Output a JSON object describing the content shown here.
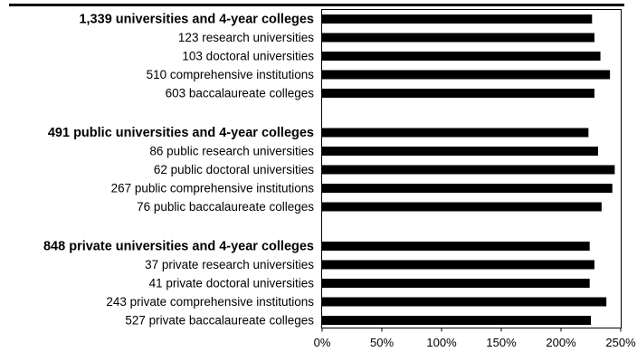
{
  "chart_data": {
    "type": "bar",
    "orientation": "horizontal",
    "title": "",
    "xlabel": "",
    "ylabel": "",
    "xlim": [
      0,
      250
    ],
    "x_ticks": [
      "0%",
      "50%",
      "100%",
      "150%",
      "200%",
      "250%"
    ],
    "grid": false,
    "legend": "none",
    "bar_color": "#000000",
    "groups": [
      {
        "label": "1,339 universities and 4-year colleges",
        "value": 226,
        "items": [
          {
            "label": "123 research universities",
            "value": 228
          },
          {
            "label": "103 doctoral universities",
            "value": 233
          },
          {
            "label": "510 comprehensive institutions",
            "value": 241
          },
          {
            "label": "603 baccalaureate colleges",
            "value": 228
          }
        ]
      },
      {
        "label": "491 public universities and 4-year colleges",
        "value": 223,
        "items": [
          {
            "label": "86 public research universities",
            "value": 231
          },
          {
            "label": "62 public doctoral universities",
            "value": 245
          },
          {
            "label": "267 public comprehensive institutions",
            "value": 243
          },
          {
            "label": "76 public baccalaureate colleges",
            "value": 234
          }
        ]
      },
      {
        "label": "848 private universities and 4-year colleges",
        "value": 224,
        "items": [
          {
            "label": "37 private research universities",
            "value": 228
          },
          {
            "label": "41 private doctoral universities",
            "value": 224
          },
          {
            "label": "243 private comprehensive institutions",
            "value": 238
          },
          {
            "label": "527 private baccalaureate colleges",
            "value": 225
          }
        ]
      }
    ]
  }
}
